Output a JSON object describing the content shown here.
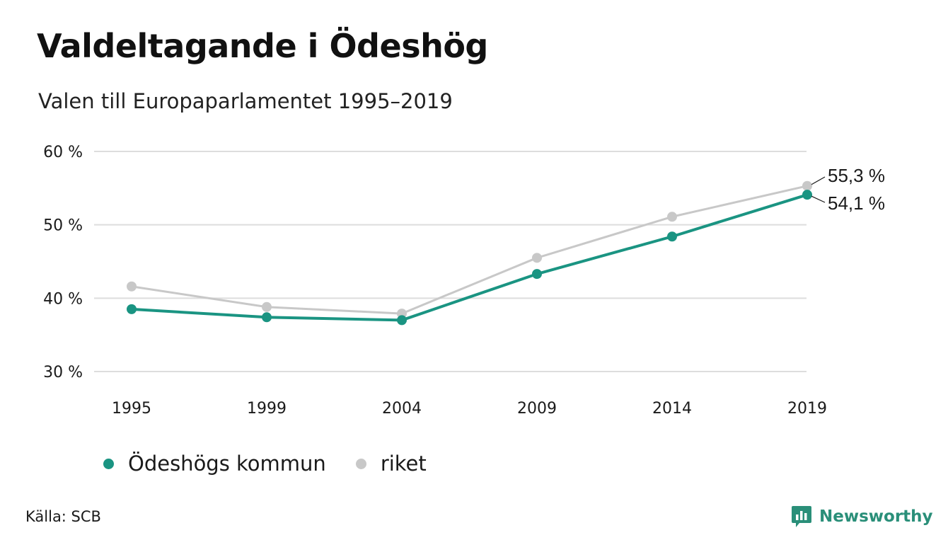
{
  "header": {
    "title": "Valdeltagande i Ödeshög",
    "subtitle": "Valen till Europaparlamentet 1995–2019"
  },
  "chart_data": {
    "type": "line",
    "categories": [
      "1995",
      "1999",
      "2004",
      "2009",
      "2014",
      "2019"
    ],
    "series": [
      {
        "name": "Ödeshögs kommun",
        "color": "#1a9482",
        "values": [
          38.5,
          37.4,
          37.0,
          43.3,
          48.4,
          54.1
        ]
      },
      {
        "name": "riket",
        "color": "#c8c8c8",
        "values": [
          41.6,
          38.8,
          37.9,
          45.5,
          51.1,
          55.3
        ]
      }
    ],
    "ylim": [
      30,
      60
    ],
    "yticks": [
      30,
      40,
      50,
      60
    ],
    "ytick_labels": [
      "30 %",
      "40 %",
      "50 %",
      "60 %"
    ],
    "grid": true,
    "legend": "bottom",
    "end_labels": [
      "55,3 %",
      "54,1 %"
    ]
  },
  "footer": {
    "source": "Källa: SCB",
    "brand": "Newsworthy",
    "brand_color": "#2a8f79",
    "brand_icon": "newsworthy-logo-icon"
  }
}
